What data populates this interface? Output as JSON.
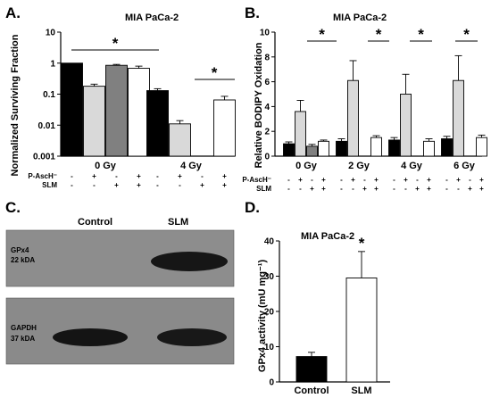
{
  "panels": {
    "a": "A.",
    "b": "B.",
    "c": "C.",
    "d": "D."
  },
  "chart_data": [
    {
      "id": "A",
      "type": "bar",
      "title": "MIA PaCa-2",
      "ylabel": "Normalized Surviving Fraction",
      "yscale": "log",
      "ylim": [
        0.001,
        10
      ],
      "yticks": [
        "0.001",
        "0.01",
        "0.1",
        "1",
        "10"
      ],
      "dose_groups": [
        "0 Gy",
        "4 Gy"
      ],
      "row_labels": [
        "P-AscH⁻",
        "SLM"
      ],
      "conditions": [
        [
          "-",
          "-"
        ],
        [
          "+",
          "-"
        ],
        [
          "-",
          "+"
        ],
        [
          "+",
          "+"
        ]
      ],
      "values": [
        [
          1.0,
          0.18,
          0.85,
          0.68
        ],
        [
          0.13,
          0.011,
          null,
          0.065
        ]
      ],
      "errors": [
        [
          0,
          0.03,
          0.06,
          0.12
        ],
        [
          0.02,
          0.003,
          null,
          0.02
        ]
      ],
      "fills": [
        "#000000",
        "#d9d9d9",
        "#808080",
        "#ffffff"
      ],
      "significance": [
        "*",
        "*"
      ]
    },
    {
      "id": "B",
      "type": "bar",
      "title": "MIA PaCa-2",
      "ylabel": "Relative BODIPY Oxidation",
      "ylim": [
        0,
        10
      ],
      "yticks": [
        "0",
        "2",
        "4",
        "6",
        "8",
        "10"
      ],
      "dose_groups": [
        "0 Gy",
        "2 Gy",
        "4 Gy",
        "6 Gy"
      ],
      "row_labels": [
        "P-AscH⁻",
        "SLM"
      ],
      "conditions": [
        [
          "-",
          "-"
        ],
        [
          "+",
          "-"
        ],
        [
          "-",
          "+"
        ],
        [
          "+",
          "+"
        ]
      ],
      "values": [
        [
          1.0,
          3.6,
          0.8,
          1.2
        ],
        [
          1.2,
          6.1,
          null,
          1.5
        ],
        [
          1.3,
          5.0,
          null,
          1.2
        ],
        [
          1.4,
          6.1,
          null,
          1.5
        ]
      ],
      "errors": [
        [
          0.15,
          0.9,
          0.15,
          0.1
        ],
        [
          0.2,
          1.6,
          null,
          0.15
        ],
        [
          0.2,
          1.6,
          null,
          0.2
        ],
        [
          0.2,
          2.0,
          null,
          0.2
        ]
      ],
      "fills": [
        "#000000",
        "#d9d9d9",
        "#808080",
        "#ffffff"
      ],
      "significance": [
        "*",
        "*",
        "*",
        "*"
      ]
    },
    {
      "id": "D",
      "type": "bar",
      "title": "MIA PaCa-2",
      "ylabel": "GPx4 activity (mU mg⁻¹)",
      "ylim": [
        0,
        40
      ],
      "yticks": [
        "0",
        "10",
        "20",
        "30",
        "40"
      ],
      "categories": [
        "Control",
        "SLM"
      ],
      "values": [
        7.2,
        29.5
      ],
      "errors": [
        1.2,
        7.5
      ],
      "fills": [
        "#000000",
        "#ffffff"
      ],
      "significance": "*"
    }
  ],
  "blot": {
    "lanes": [
      "Control",
      "SLM"
    ],
    "bands": [
      {
        "protein": "GPx4",
        "size": "22 kDA"
      },
      {
        "protein": "GAPDH",
        "size": "37 kDA"
      }
    ]
  }
}
